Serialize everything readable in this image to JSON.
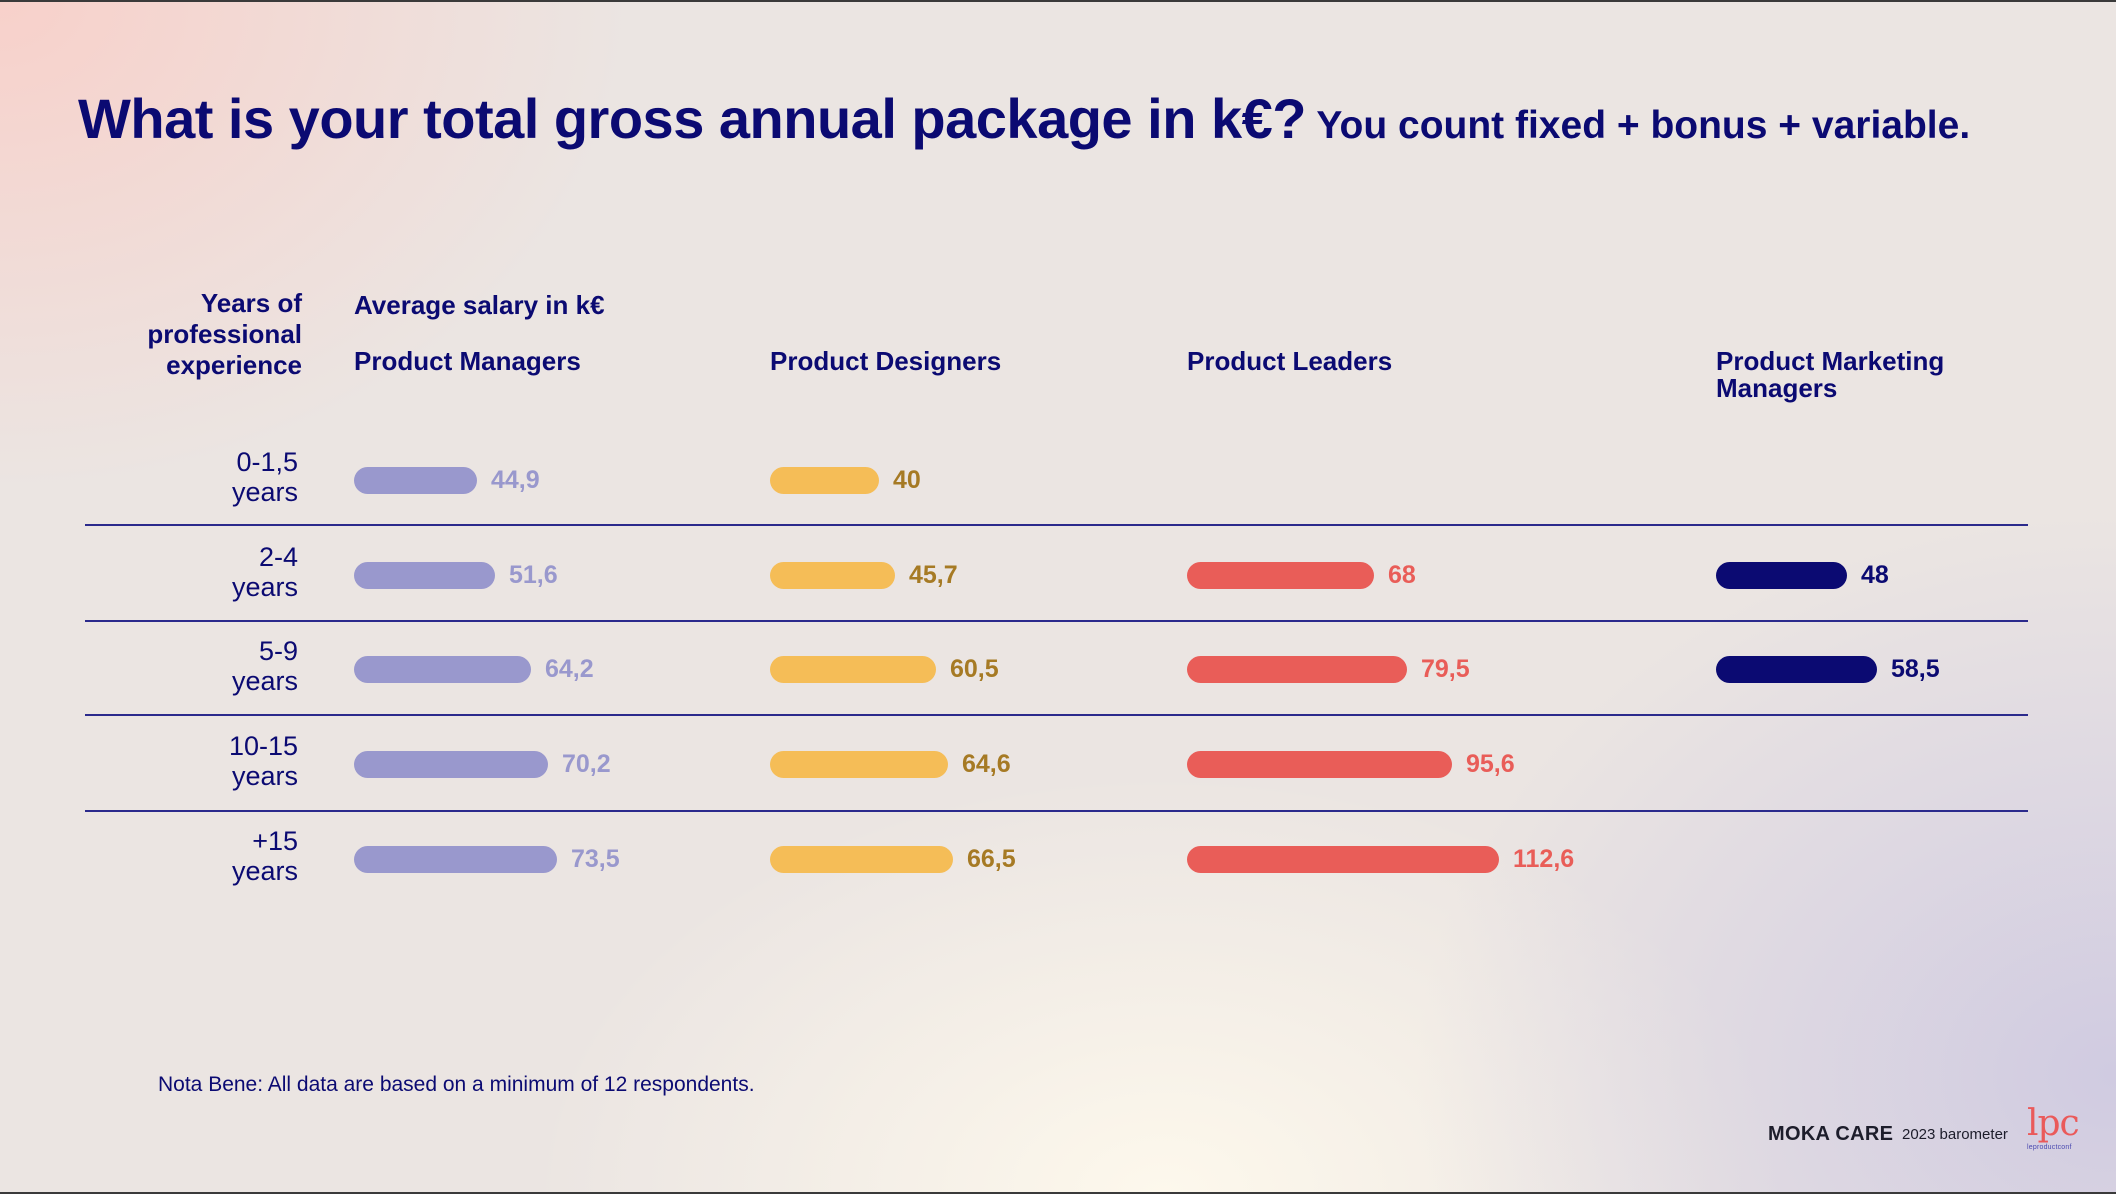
{
  "title": "What is your total gross annual package in k€?",
  "subtitle": "You count fixed + bonus + variable.",
  "row_header_lines": [
    "Years of",
    "professional",
    "experience"
  ],
  "value_header": "Average salary in k€",
  "note": "Nota Bene: All data are based on a minimum of 12 respondents.",
  "footer": {
    "brand": "MOKA CARE",
    "year_label": "2023 barometer",
    "logo_text": "lpc",
    "logo_subtext": "leproductconf"
  },
  "colors": {
    "product_managers": "#9998cd",
    "product_designers": "#f5bd57",
    "product_leaders": "#e95d58",
    "product_marketing_managers": "#0b0a72",
    "designer_value_text": "#a67a24"
  },
  "chart_data": {
    "type": "bar",
    "categories": [
      "0-1,5 years",
      "2-4 years",
      "5-9 years",
      "10-15 years",
      "+15 years"
    ],
    "category_lines": [
      [
        "0-1,5",
        "years"
      ],
      [
        "2-4",
        "years"
      ],
      [
        "5-9",
        "years"
      ],
      [
        "10-15",
        "years"
      ],
      [
        "+15",
        "years"
      ]
    ],
    "series": [
      {
        "name": "Product Managers",
        "values": [
          44.9,
          51.6,
          64.2,
          70.2,
          73.5
        ],
        "labels": [
          "44,9",
          "51,6",
          "64,2",
          "70,2",
          "73,5"
        ]
      },
      {
        "name": "Product Designers",
        "values": [
          40,
          45.7,
          60.5,
          64.6,
          66.5
        ],
        "labels": [
          "40",
          "45,7",
          "60,5",
          "64,6",
          "66,5"
        ]
      },
      {
        "name": "Product Leaders",
        "values": [
          null,
          68,
          79.5,
          95.6,
          112.6
        ],
        "labels": [
          "",
          "68",
          "79,5",
          "95,6",
          "112,6"
        ]
      },
      {
        "name_lines": [
          "Product Marketing",
          "Managers"
        ],
        "values": [
          null,
          48,
          58.5,
          null,
          null
        ],
        "labels": [
          "",
          "48",
          "58,5",
          "",
          ""
        ]
      }
    ],
    "grid": false,
    "legend": "none"
  }
}
